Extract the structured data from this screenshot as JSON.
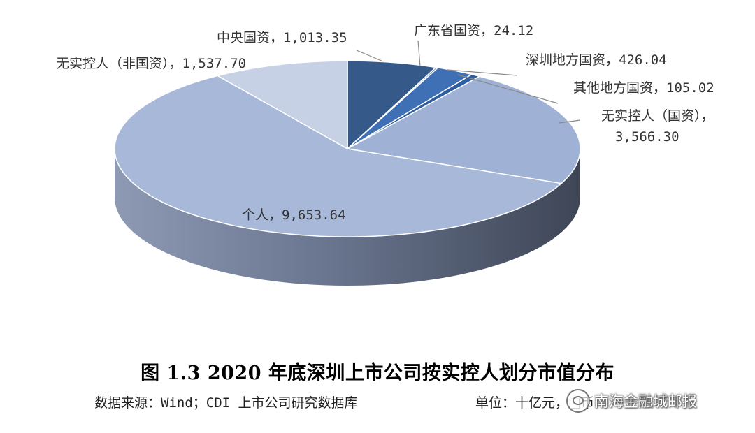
{
  "chart_data": {
    "type": "pie",
    "title": "图 1.3 2020 年底深圳上市公司按实控人划分市值分布",
    "source": "数据来源：Wind；CDI 上市公司研究数据库",
    "unit": "单位：十亿元，□币",
    "slices": [
      {
        "name": "中央国资",
        "value": 1013.35,
        "label": "中央国资，1,013.35",
        "color": "#355a8a"
      },
      {
        "name": "广东省国资",
        "value": 24.12,
        "label": "广东省国资，24.12",
        "color": "#4a6fa8"
      },
      {
        "name": "深圳地方国资",
        "value": 426.04,
        "label": "深圳地方国资，426.04",
        "color": "#3f6fb5"
      },
      {
        "name": "其他地方国资",
        "value": 105.02,
        "label": "其他地方国资，105.02",
        "color": "#2f5ea0"
      },
      {
        "name": "无实控人（国资）",
        "value": 3566.3,
        "label_lines": [
          "无实控人（国资），",
          "3,566.30"
        ],
        "color": "#9fb2d6"
      },
      {
        "name": "个人",
        "value": 9653.64,
        "label": "个人，9,653.64",
        "color": "#a7b8d9"
      },
      {
        "name": "无实控人（非国资）",
        "value": 1537.7,
        "label": "无实控人（非国资），1,537.70",
        "color": "#c7d1e5"
      }
    ]
  },
  "watermark": {
    "text": "南海金融城邮报"
  }
}
